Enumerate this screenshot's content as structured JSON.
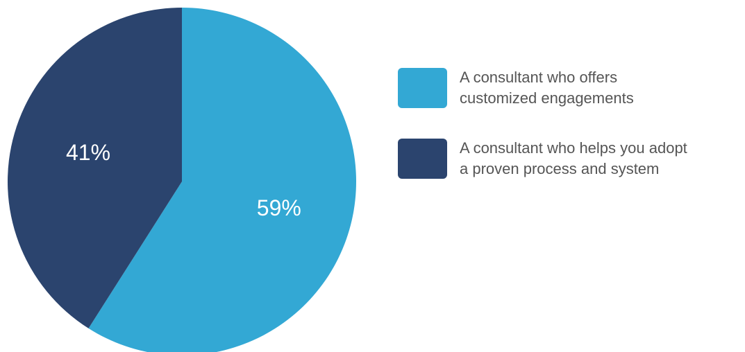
{
  "chart_data": {
    "type": "pie",
    "title": "",
    "slices": [
      {
        "label": "A consultant who offers\ncustomized engagements",
        "value": 59,
        "display": "59%",
        "color": "#33a8d4"
      },
      {
        "label": "A consultant who helps you adopt\na proven process and system",
        "value": 41,
        "display": "41%",
        "color": "#2b446e"
      }
    ],
    "legend_position": "right"
  }
}
